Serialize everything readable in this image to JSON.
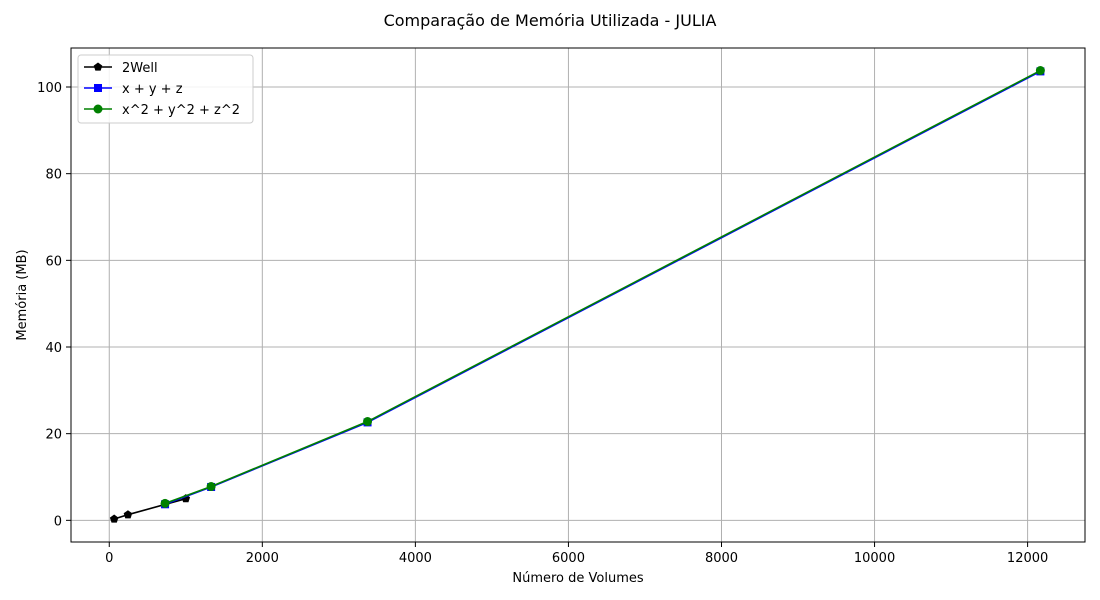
{
  "chart_data": {
    "type": "line",
    "title": "Comparação de Memória Utilizada - JULIA",
    "xlabel": "Número de Volumes",
    "ylabel": "Memória (MB)",
    "xlim": [
      -500,
      12750
    ],
    "ylim": [
      -5,
      109
    ],
    "xticks": [
      0,
      2000,
      4000,
      6000,
      8000,
      10000,
      12000
    ],
    "yticks": [
      0,
      20,
      40,
      60,
      80,
      100
    ],
    "grid": true,
    "legend_position": "top-left",
    "series": [
      {
        "name": "2Well",
        "color": "#000000",
        "marker": "pentagon",
        "x": [
          64,
          244,
          1000
        ],
        "y": [
          0.3,
          1.3,
          5.0
        ]
      },
      {
        "name": "x + y + z",
        "color": "#0000ff",
        "marker": "square",
        "x": [
          729,
          1331,
          3375,
          12167
        ],
        "y": [
          3.7,
          7.7,
          22.6,
          103.6
        ]
      },
      {
        "name": "x^2 + y^2 + z^2",
        "color": "#008000",
        "marker": "circle",
        "x": [
          729,
          1331,
          3375,
          12167
        ],
        "y": [
          3.9,
          7.8,
          22.8,
          103.8
        ]
      }
    ]
  }
}
